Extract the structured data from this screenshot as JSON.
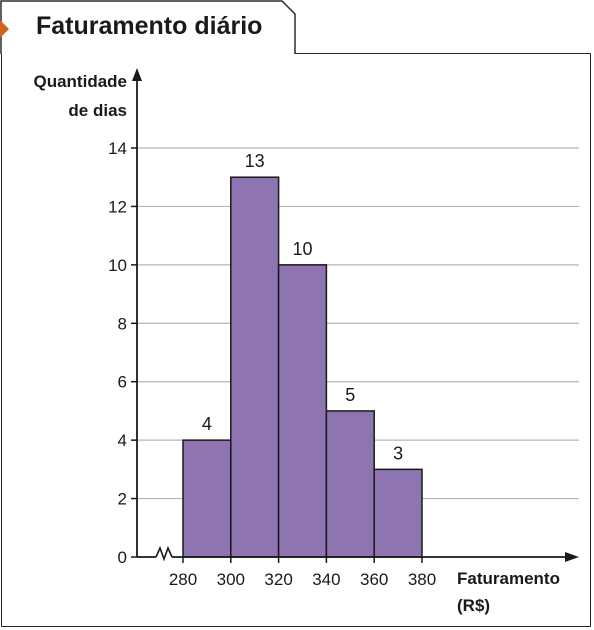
{
  "chart_data": {
    "type": "bar",
    "title": "Faturamento diário",
    "ylabel_line1": "Quantidade",
    "ylabel_line2": "de dias",
    "xlabel_line1": "Faturamento",
    "xlabel_line2": "(R$)",
    "bins": [
      [
        280,
        300
      ],
      [
        300,
        320
      ],
      [
        320,
        340
      ],
      [
        340,
        360
      ],
      [
        360,
        380
      ]
    ],
    "values": [
      4,
      13,
      10,
      5,
      3
    ],
    "x_ticks": [
      280,
      300,
      320,
      340,
      360,
      380
    ],
    "y_ticks": [
      0,
      2,
      4,
      6,
      8,
      10,
      12,
      14
    ],
    "xlim": [
      280,
      380
    ],
    "ylim": [
      0,
      14
    ],
    "grid": true,
    "axis_break": true,
    "colors": {
      "bar": "#8e74b0",
      "bar_edge": "#1a1a1a",
      "grid": "#b5b5b5",
      "axis": "#1a1a1a",
      "accent": "#d4621f"
    }
  }
}
